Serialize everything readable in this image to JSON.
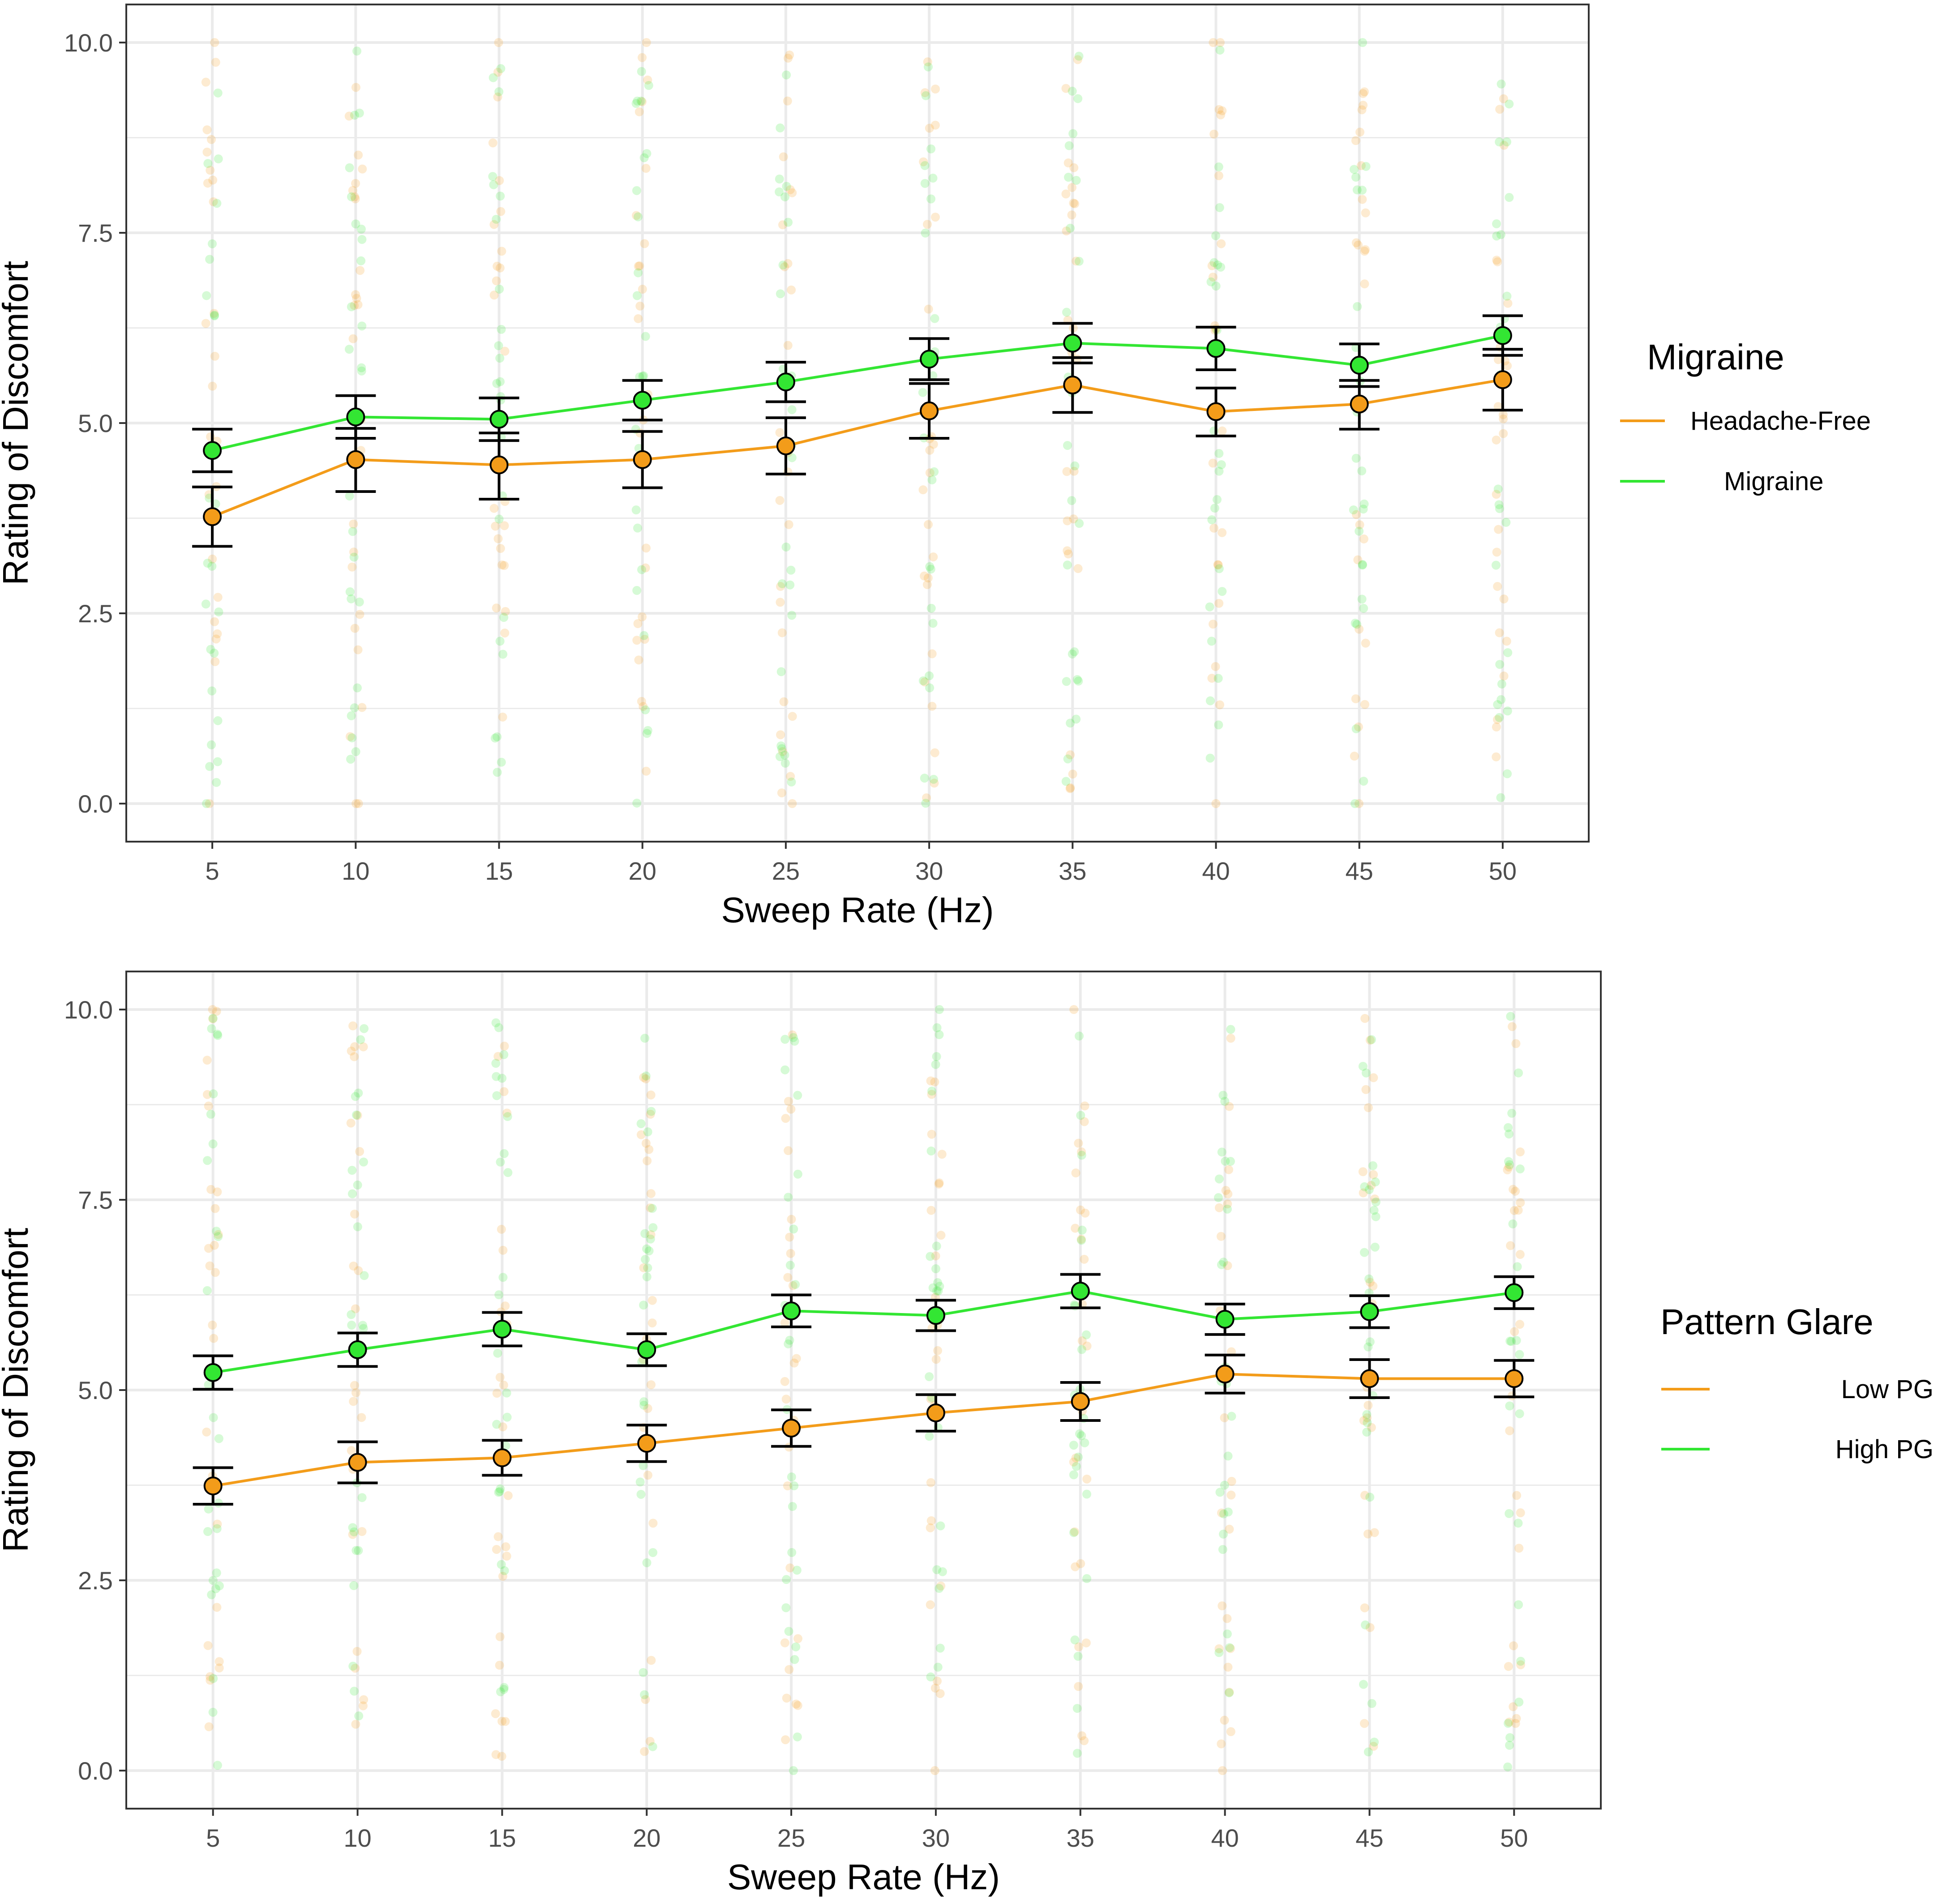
{
  "chart_data": [
    {
      "type": "line",
      "panel": "top",
      "title": "",
      "xlabel": "Sweep Rate (Hz)",
      "ylabel": "Rating of Discomfort",
      "x": [
        5,
        10,
        15,
        20,
        25,
        30,
        35,
        40,
        45,
        50
      ],
      "xlim": [
        2,
        53
      ],
      "ylim": [
        -0.5,
        10.5
      ],
      "xticks": [
        "5",
        "10",
        "15",
        "20",
        "25",
        "30",
        "35",
        "40",
        "45",
        "50"
      ],
      "yticks": [
        "0.0",
        "2.5",
        "5.0",
        "7.5",
        "10.0"
      ],
      "grid": true,
      "legend": {
        "title": "Migraine",
        "placement": "right",
        "entries": [
          "Headache-Free",
          "Migraine"
        ]
      },
      "series": [
        {
          "name": "Headache-Free",
          "color": "#F39C1A",
          "values": [
            3.77,
            4.52,
            4.45,
            4.52,
            4.7,
            5.16,
            5.5,
            5.15,
            5.25,
            5.57
          ],
          "err_low": [
            3.38,
            4.1,
            4.0,
            4.15,
            4.33,
            4.8,
            5.14,
            4.83,
            4.92,
            5.17
          ],
          "err_high": [
            4.16,
            4.93,
            4.87,
            4.89,
            5.07,
            5.52,
            5.86,
            5.46,
            5.56,
            5.97
          ]
        },
        {
          "name": "Migraine",
          "color": "#33E633",
          "values": [
            4.64,
            5.08,
            5.05,
            5.3,
            5.54,
            5.84,
            6.05,
            5.98,
            5.76,
            6.15
          ],
          "err_low": [
            4.36,
            4.8,
            4.77,
            5.04,
            5.28,
            5.57,
            5.79,
            5.7,
            5.48,
            5.89
          ],
          "err_high": [
            4.92,
            5.36,
            5.33,
            5.56,
            5.8,
            6.11,
            6.31,
            6.26,
            6.04,
            6.41
          ]
        }
      ]
    },
    {
      "type": "line",
      "panel": "bottom",
      "title": "",
      "xlabel": "Sweep Rate (Hz)",
      "ylabel": "Rating of Discomfort",
      "x": [
        5,
        10,
        15,
        20,
        25,
        30,
        35,
        40,
        45,
        50
      ],
      "xlim": [
        2,
        53
      ],
      "ylim": [
        -0.5,
        10.5
      ],
      "xticks": [
        "5",
        "10",
        "15",
        "20",
        "25",
        "30",
        "35",
        "40",
        "45",
        "50"
      ],
      "yticks": [
        "0.0",
        "2.5",
        "5.0",
        "7.5",
        "10.0"
      ],
      "grid": true,
      "legend": {
        "title": "Pattern Glare",
        "placement": "right",
        "entries": [
          "Low PG",
          "High PG"
        ]
      },
      "series": [
        {
          "name": "Low PG",
          "color": "#F39C1A",
          "values": [
            3.74,
            4.05,
            4.11,
            4.3,
            4.5,
            4.7,
            4.85,
            5.21,
            5.15,
            5.15
          ],
          "err_low": [
            3.5,
            3.78,
            3.88,
            4.06,
            4.26,
            4.46,
            4.6,
            4.96,
            4.9,
            4.91
          ],
          "err_high": [
            3.98,
            4.32,
            4.34,
            4.54,
            4.74,
            4.94,
            5.1,
            5.46,
            5.4,
            5.39
          ]
        },
        {
          "name": "High PG",
          "color": "#33E633",
          "values": [
            5.23,
            5.53,
            5.8,
            5.53,
            6.04,
            5.98,
            6.3,
            5.93,
            6.03,
            6.28
          ],
          "err_low": [
            5.01,
            5.31,
            5.58,
            5.32,
            5.83,
            5.78,
            6.08,
            5.73,
            5.82,
            6.07
          ],
          "err_high": [
            5.45,
            5.75,
            6.02,
            5.74,
            6.25,
            6.18,
            6.52,
            6.13,
            6.24,
            6.49
          ]
        }
      ]
    }
  ]
}
